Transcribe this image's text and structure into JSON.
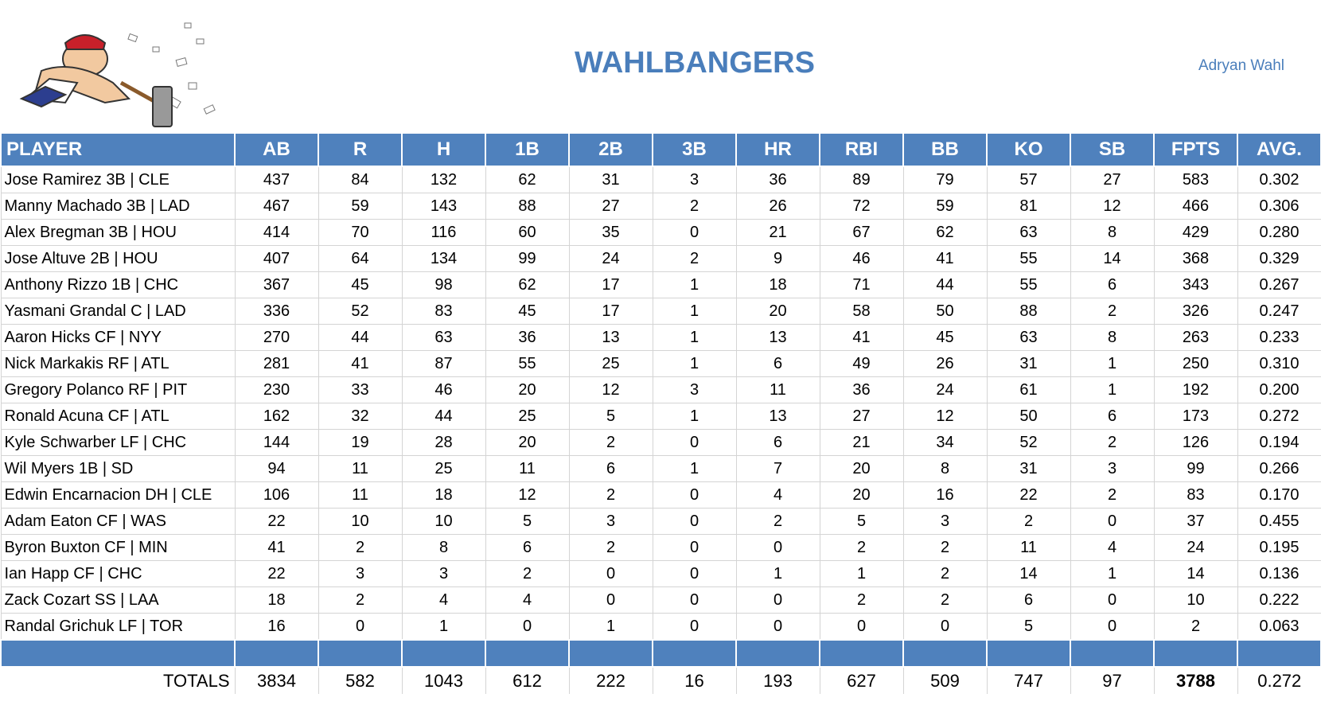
{
  "header": {
    "title": "WAHLBANGERS",
    "owner": "Adryan Wahl"
  },
  "table": {
    "columns": [
      "PLAYER",
      "AB",
      "R",
      "H",
      "1B",
      "2B",
      "3B",
      "HR",
      "RBI",
      "BB",
      "KO",
      "SB",
      "FPTS",
      "AVG."
    ],
    "rows": [
      [
        "Jose Ramirez 3B | CLE",
        "437",
        "84",
        "132",
        "62",
        "31",
        "3",
        "36",
        "89",
        "79",
        "57",
        "27",
        "583",
        "0.302"
      ],
      [
        "Manny Machado 3B | LAD",
        "467",
        "59",
        "143",
        "88",
        "27",
        "2",
        "26",
        "72",
        "59",
        "81",
        "12",
        "466",
        "0.306"
      ],
      [
        "Alex Bregman 3B | HOU",
        "414",
        "70",
        "116",
        "60",
        "35",
        "0",
        "21",
        "67",
        "62",
        "63",
        "8",
        "429",
        "0.280"
      ],
      [
        "Jose Altuve 2B | HOU",
        "407",
        "64",
        "134",
        "99",
        "24",
        "2",
        "9",
        "46",
        "41",
        "55",
        "14",
        "368",
        "0.329"
      ],
      [
        "Anthony Rizzo 1B | CHC",
        "367",
        "45",
        "98",
        "62",
        "17",
        "1",
        "18",
        "71",
        "44",
        "55",
        "6",
        "343",
        "0.267"
      ],
      [
        "Yasmani Grandal C | LAD",
        "336",
        "52",
        "83",
        "45",
        "17",
        "1",
        "20",
        "58",
        "50",
        "88",
        "2",
        "326",
        "0.247"
      ],
      [
        "Aaron Hicks CF | NYY",
        "270",
        "44",
        "63",
        "36",
        "13",
        "1",
        "13",
        "41",
        "45",
        "63",
        "8",
        "263",
        "0.233"
      ],
      [
        "Nick Markakis RF | ATL",
        "281",
        "41",
        "87",
        "55",
        "25",
        "1",
        "6",
        "49",
        "26",
        "31",
        "1",
        "250",
        "0.310"
      ],
      [
        "Gregory Polanco RF | PIT",
        "230",
        "33",
        "46",
        "20",
        "12",
        "3",
        "11",
        "36",
        "24",
        "61",
        "1",
        "192",
        "0.200"
      ],
      [
        "Ronald Acuna CF | ATL",
        "162",
        "32",
        "44",
        "25",
        "5",
        "1",
        "13",
        "27",
        "12",
        "50",
        "6",
        "173",
        "0.272"
      ],
      [
        "Kyle Schwarber LF | CHC",
        "144",
        "19",
        "28",
        "20",
        "2",
        "0",
        "6",
        "21",
        "34",
        "52",
        "2",
        "126",
        "0.194"
      ],
      [
        "Wil Myers 1B | SD",
        "94",
        "11",
        "25",
        "11",
        "6",
        "1",
        "7",
        "20",
        "8",
        "31",
        "3",
        "99",
        "0.266"
      ],
      [
        "Edwin Encarnacion DH | CLE",
        "106",
        "11",
        "18",
        "12",
        "2",
        "0",
        "4",
        "20",
        "16",
        "22",
        "2",
        "83",
        "0.170"
      ],
      [
        "Adam Eaton CF | WAS",
        "22",
        "10",
        "10",
        "5",
        "3",
        "0",
        "2",
        "5",
        "3",
        "2",
        "0",
        "37",
        "0.455"
      ],
      [
        "Byron Buxton CF | MIN",
        "41",
        "2",
        "8",
        "6",
        "2",
        "0",
        "0",
        "2",
        "2",
        "11",
        "4",
        "24",
        "0.195"
      ],
      [
        "Ian Happ CF | CHC",
        "22",
        "3",
        "3",
        "2",
        "0",
        "0",
        "1",
        "1",
        "2",
        "14",
        "1",
        "14",
        "0.136"
      ],
      [
        "Zack Cozart SS | LAA",
        "18",
        "2",
        "4",
        "4",
        "0",
        "0",
        "0",
        "2",
        "2",
        "6",
        "0",
        "10",
        "0.222"
      ],
      [
        "Randal Grichuk LF | TOR",
        "16",
        "0",
        "1",
        "0",
        "1",
        "0",
        "0",
        "0",
        "0",
        "5",
        "0",
        "2",
        "0.063"
      ]
    ],
    "totals": [
      "TOTALS",
      "3834",
      "582",
      "1043",
      "612",
      "222",
      "16",
      "193",
      "627",
      "509",
      "747",
      "97",
      "3788",
      "0.272"
    ]
  }
}
